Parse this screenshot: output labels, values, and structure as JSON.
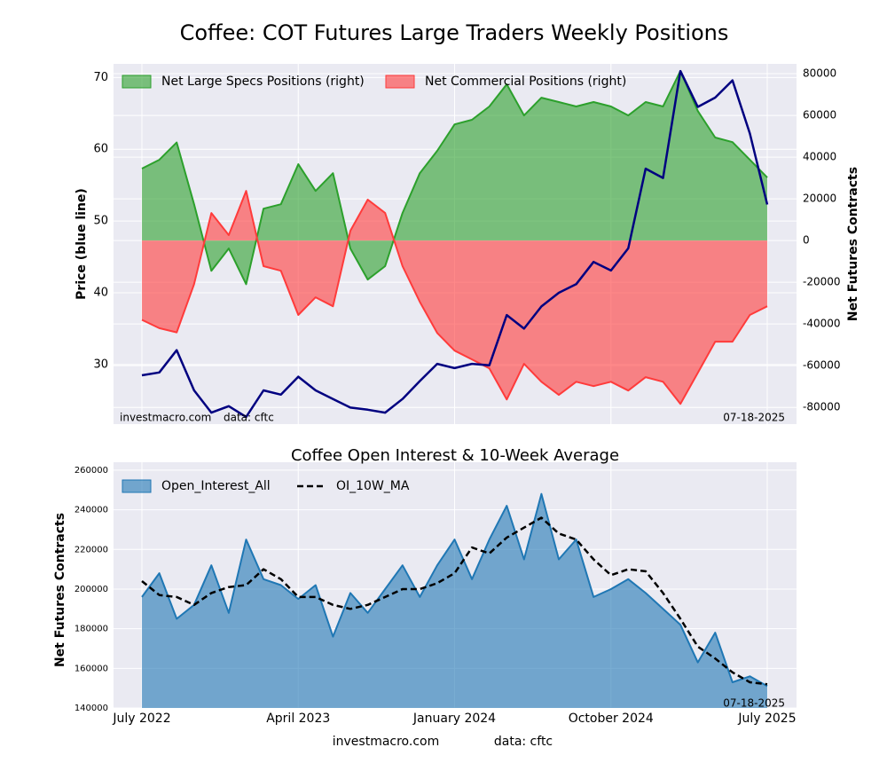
{
  "title": "Coffee: COT Futures Large Traders Weekly Positions",
  "footer": {
    "source": "investmacro.com",
    "data": "data: cftc"
  },
  "chart_data": [
    {
      "type": "combo",
      "ylabel": "Price (blue line)",
      "y2label": "Net Futures Contracts",
      "ylim": [
        21.7,
        71.9
      ],
      "yticks": [
        30,
        40,
        50,
        60,
        70
      ],
      "y2lim": [
        -88000,
        84700
      ],
      "y2ticks": [
        -80000,
        -60000,
        -40000,
        -20000,
        0,
        20000,
        40000,
        60000,
        80000
      ],
      "grid": true,
      "legend": "upper-left",
      "annotations": [
        "investmacro.com",
        "data: cftc",
        "07-18-2025"
      ],
      "x": [
        "2022-07",
        "2022-08",
        "2022-09",
        "2022-10",
        "2022-11",
        "2022-12",
        "2023-01",
        "2023-02",
        "2023-03",
        "2023-04",
        "2023-05",
        "2023-06",
        "2023-07",
        "2023-08",
        "2023-09",
        "2023-10",
        "2023-11",
        "2023-12",
        "2024-01",
        "2024-02",
        "2024-03",
        "2024-04",
        "2024-05",
        "2024-06",
        "2024-07",
        "2024-08",
        "2024-09",
        "2024-10",
        "2024-11",
        "2024-12",
        "2025-01",
        "2025-02",
        "2025-03",
        "2025-04",
        "2025-05",
        "2025-06",
        "2025-07"
      ],
      "series": [
        {
          "name": "Net Large Specs Positions (right)",
          "kind": "area",
          "axis": "y2",
          "color": "#2ca02c",
          "values": [
            34500,
            38700,
            47000,
            17400,
            -14500,
            -3800,
            -20900,
            15300,
            17400,
            36600,
            23800,
            32300,
            -3800,
            -18700,
            -12300,
            13200,
            32300,
            43000,
            55700,
            57900,
            64300,
            74900,
            60000,
            68500,
            66400,
            64300,
            66400,
            64300,
            60000,
            66400,
            64300,
            81300,
            62100,
            49400,
            47200,
            38700,
            30200
          ]
        },
        {
          "name": "Net Commercial Positions (right)",
          "kind": "area",
          "axis": "y2",
          "color": "#ff3b3b",
          "values": [
            -38000,
            -42000,
            -44000,
            -20900,
            13200,
            2600,
            23800,
            -12300,
            -14500,
            -35700,
            -27200,
            -31500,
            4700,
            19600,
            13200,
            -12300,
            -29400,
            -44300,
            -52800,
            -57000,
            -61300,
            -76200,
            -59100,
            -67700,
            -74000,
            -67700,
            -69800,
            -67700,
            -71900,
            -65500,
            -67700,
            -78300,
            -63400,
            -48500,
            -48500,
            -35700,
            -31500
          ]
        },
        {
          "kind": "line",
          "axis": "y",
          "color": "#000080",
          "values": [
            28.5,
            28.9,
            32,
            26.4,
            23.3,
            24.2,
            22.7,
            26.4,
            25.8,
            28.3,
            26.4,
            25.2,
            24,
            23.7,
            23.3,
            25.2,
            27.7,
            30.1,
            29.5,
            30.1,
            29.9,
            36.9,
            35,
            38.1,
            40,
            41.2,
            44.3,
            43.1,
            46.2,
            57.3,
            56,
            70.9,
            65.9,
            67.2,
            69.6,
            62.2,
            52.3
          ]
        }
      ]
    },
    {
      "type": "combo",
      "title": "Coffee Open Interest & 10-Week Average",
      "ylabel": "Net Futures Contracts",
      "ylim": [
        140000,
        264000
      ],
      "yticks": [
        140000,
        160000,
        180000,
        200000,
        220000,
        240000,
        260000
      ],
      "grid": true,
      "legend": "upper-left",
      "annotations": [
        "07-18-2025"
      ],
      "x": [
        "2022-07",
        "2022-08",
        "2022-09",
        "2022-10",
        "2022-11",
        "2022-12",
        "2023-01",
        "2023-02",
        "2023-03",
        "2023-04",
        "2023-05",
        "2023-06",
        "2023-07",
        "2023-08",
        "2023-09",
        "2023-10",
        "2023-11",
        "2023-12",
        "2024-01",
        "2024-02",
        "2024-03",
        "2024-04",
        "2024-05",
        "2024-06",
        "2024-07",
        "2024-08",
        "2024-09",
        "2024-10",
        "2024-11",
        "2024-12",
        "2025-01",
        "2025-02",
        "2025-03",
        "2025-04",
        "2025-05",
        "2025-06",
        "2025-07"
      ],
      "xticks": [
        {
          "value": "2022-07",
          "label": "July 2022"
        },
        {
          "value": "2023-04",
          "label": "April 2023"
        },
        {
          "value": "2024-01",
          "label": "January 2024"
        },
        {
          "value": "2024-10",
          "label": "October 2024"
        },
        {
          "value": "2025-07",
          "label": "July 2025"
        }
      ],
      "series": [
        {
          "name": "Open_Interest_All",
          "kind": "area",
          "axis": "y",
          "color": "#1f77b4",
          "values": [
            196000,
            208000,
            185000,
            192000,
            212000,
            188000,
            225000,
            205000,
            202000,
            195000,
            202000,
            176000,
            198000,
            188000,
            200000,
            212000,
            196000,
            212000,
            225000,
            205000,
            225000,
            242000,
            215000,
            248000,
            215000,
            225000,
            196000,
            200000,
            205000,
            198000,
            190000,
            182000,
            163000,
            178000,
            153000,
            156000,
            151000
          ]
        },
        {
          "name": "OI_10W_MA",
          "kind": "line",
          "axis": "y",
          "color": "#000000",
          "linestyle": "dashed",
          "values": [
            204000,
            197000,
            196000,
            192000,
            198000,
            201000,
            202000,
            210000,
            205000,
            196000,
            196000,
            192000,
            190000,
            192000,
            196000,
            200000,
            200000,
            203000,
            208000,
            221000,
            218000,
            226000,
            231000,
            236000,
            228000,
            225000,
            215000,
            207000,
            210000,
            209000,
            198000,
            185000,
            171000,
            165000,
            158000,
            153000,
            152000
          ]
        }
      ]
    }
  ]
}
